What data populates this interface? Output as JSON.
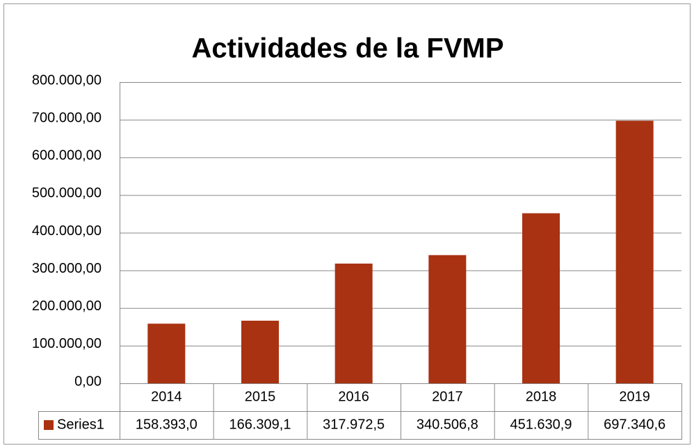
{
  "chart_data": {
    "type": "bar",
    "title": "Actividades de la FVMP",
    "categories": [
      "2014",
      "2015",
      "2016",
      "2017",
      "2018",
      "2019"
    ],
    "series": [
      {
        "name": "Series1",
        "color": "#a93212",
        "values": [
          158393.0,
          166309.1,
          317972.5,
          340506.8,
          451630.9,
          697340.6
        ],
        "value_labels": [
          "158.393,0",
          "166.309,1",
          "317.972,5",
          "340.506,8",
          "451.630,9",
          "697.340,6"
        ]
      }
    ],
    "ylim": [
      0,
      800000
    ],
    "yticks": [
      {
        "value": 0,
        "label": "0,00"
      },
      {
        "value": 100000,
        "label": "100.000,00"
      },
      {
        "value": 200000,
        "label": "200.000,00"
      },
      {
        "value": 300000,
        "label": "300.000,00"
      },
      {
        "value": 400000,
        "label": "400.000,00"
      },
      {
        "value": 500000,
        "label": "500.000,00"
      },
      {
        "value": 600000,
        "label": "600.000,00"
      },
      {
        "value": 700000,
        "label": "700.000,00"
      },
      {
        "value": 800000,
        "label": "800.000,00"
      }
    ],
    "grid": true,
    "data_table": true
  }
}
